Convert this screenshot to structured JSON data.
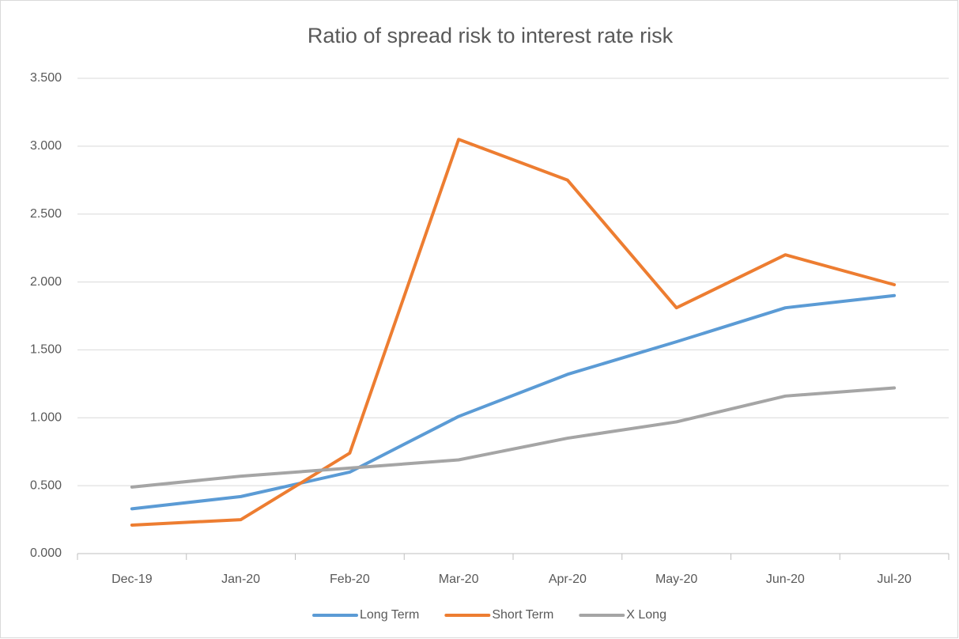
{
  "chart_data": {
    "type": "line",
    "title": "Ratio of spread risk to interest rate risk",
    "categories": [
      "Dec-19",
      "Jan-20",
      "Feb-20",
      "Mar-20",
      "Apr-20",
      "May-20",
      "Jun-20",
      "Jul-20"
    ],
    "series": [
      {
        "name": "Long Term",
        "color": "#5b9bd5",
        "values": [
          0.33,
          0.42,
          0.6,
          1.01,
          1.32,
          1.56,
          1.81,
          1.9
        ]
      },
      {
        "name": "Short Term",
        "color": "#ed7d31",
        "values": [
          0.21,
          0.25,
          0.74,
          3.05,
          2.75,
          1.81,
          2.2,
          1.98
        ]
      },
      {
        "name": "X Long",
        "color": "#a5a5a5",
        "values": [
          0.49,
          0.57,
          0.63,
          0.69,
          0.85,
          0.97,
          1.16,
          1.22
        ]
      }
    ],
    "ylim": [
      0,
      3.5
    ],
    "yticks": [
      {
        "value": 0,
        "label": "0.000"
      },
      {
        "value": 0.5,
        "label": "0.500"
      },
      {
        "value": 1,
        "label": "1.000"
      },
      {
        "value": 1.5,
        "label": "1.500"
      },
      {
        "value": 2,
        "label": "2.000"
      },
      {
        "value": 2.5,
        "label": "2.500"
      },
      {
        "value": 3,
        "label": "3.000"
      },
      {
        "value": 3.5,
        "label": "3.500"
      }
    ],
    "grid": true,
    "legend": "bottom"
  }
}
